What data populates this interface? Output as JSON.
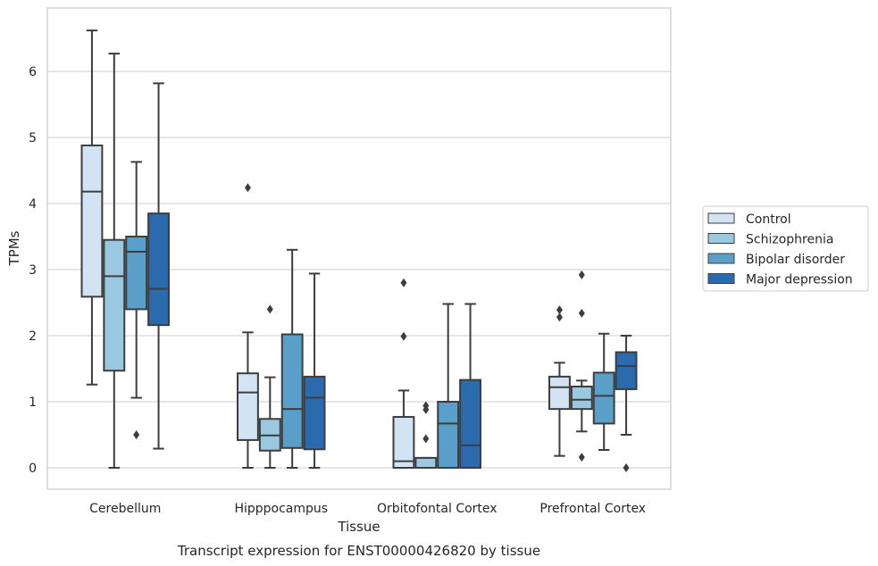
{
  "caption": "Transcript expression for ENST00000426820 by tissue",
  "chart_data": {
    "type": "box",
    "title": "",
    "xlabel": "Tissue",
    "ylabel": "TPMs",
    "ylim": [
      -0.32,
      6.95
    ],
    "yticks": [
      0,
      1,
      2,
      3,
      4,
      5,
      6
    ],
    "grid": "horizontal",
    "legend_position": "outside-right",
    "categories": [
      "Cerebellum",
      "Hipppocampus",
      "Orbitofontal Cortex",
      "Prefrontal Cortex"
    ],
    "series": [
      {
        "name": "Control",
        "color": "#d2e3f3",
        "boxes": [
          {
            "whisker_low": 1.26,
            "q1": 2.59,
            "median": 4.18,
            "q3": 4.88,
            "whisker_high": 6.62,
            "outliers": []
          },
          {
            "whisker_low": 0.0,
            "q1": 0.42,
            "median": 1.14,
            "q3": 1.43,
            "whisker_high": 2.05,
            "outliers": [
              4.24
            ]
          },
          {
            "whisker_low": 0.0,
            "q1": 0.0,
            "median": 0.1,
            "q3": 0.77,
            "whisker_high": 1.17,
            "outliers": [
              1.99,
              2.8
            ]
          },
          {
            "whisker_low": 0.18,
            "q1": 0.89,
            "median": 1.22,
            "q3": 1.38,
            "whisker_high": 1.59,
            "outliers": [
              2.28,
              2.39
            ]
          }
        ]
      },
      {
        "name": "Schizophrenia",
        "color": "#9ac8e0",
        "boxes": [
          {
            "whisker_low": 0.0,
            "q1": 1.47,
            "median": 2.9,
            "q3": 3.45,
            "whisker_high": 6.27,
            "outliers": []
          },
          {
            "whisker_low": 0.0,
            "q1": 0.26,
            "median": 0.49,
            "q3": 0.74,
            "whisker_high": 1.37,
            "outliers": [
              2.4
            ]
          },
          {
            "whisker_low": 0.0,
            "q1": 0.0,
            "median": 0.0,
            "q3": 0.15,
            "whisker_high": 0.15,
            "outliers": [
              0.44,
              0.88,
              0.94
            ]
          },
          {
            "whisker_low": 0.55,
            "q1": 0.89,
            "median": 1.03,
            "q3": 1.23,
            "whisker_high": 1.32,
            "outliers": [
              0.16,
              2.34,
              2.92
            ]
          }
        ]
      },
      {
        "name": "Bipolar disorder",
        "color": "#5a9fc9",
        "boxes": [
          {
            "whisker_low": 1.06,
            "q1": 2.4,
            "median": 3.27,
            "q3": 3.5,
            "whisker_high": 4.63,
            "outliers": [
              0.5
            ]
          },
          {
            "whisker_low": 0.0,
            "q1": 0.3,
            "median": 0.89,
            "q3": 2.02,
            "whisker_high": 3.3,
            "outliers": []
          },
          {
            "whisker_low": 0.0,
            "q1": 0.0,
            "median": 0.67,
            "q3": 1.0,
            "whisker_high": 2.48,
            "outliers": []
          },
          {
            "whisker_low": 0.27,
            "q1": 0.67,
            "median": 1.09,
            "q3": 1.44,
            "whisker_high": 2.03,
            "outliers": []
          }
        ]
      },
      {
        "name": "Major depression",
        "color": "#2a6aad",
        "boxes": [
          {
            "whisker_low": 0.29,
            "q1": 2.16,
            "median": 2.71,
            "q3": 3.85,
            "whisker_high": 5.82,
            "outliers": []
          },
          {
            "whisker_low": 0.0,
            "q1": 0.28,
            "median": 1.06,
            "q3": 1.38,
            "whisker_high": 2.94,
            "outliers": []
          },
          {
            "whisker_low": 0.0,
            "q1": 0.0,
            "median": 0.34,
            "q3": 1.33,
            "whisker_high": 2.48,
            "outliers": []
          },
          {
            "whisker_low": 0.5,
            "q1": 1.19,
            "median": 1.54,
            "q3": 1.75,
            "whisker_high": 2.0,
            "outliers": [
              0.0
            ]
          }
        ]
      }
    ]
  }
}
